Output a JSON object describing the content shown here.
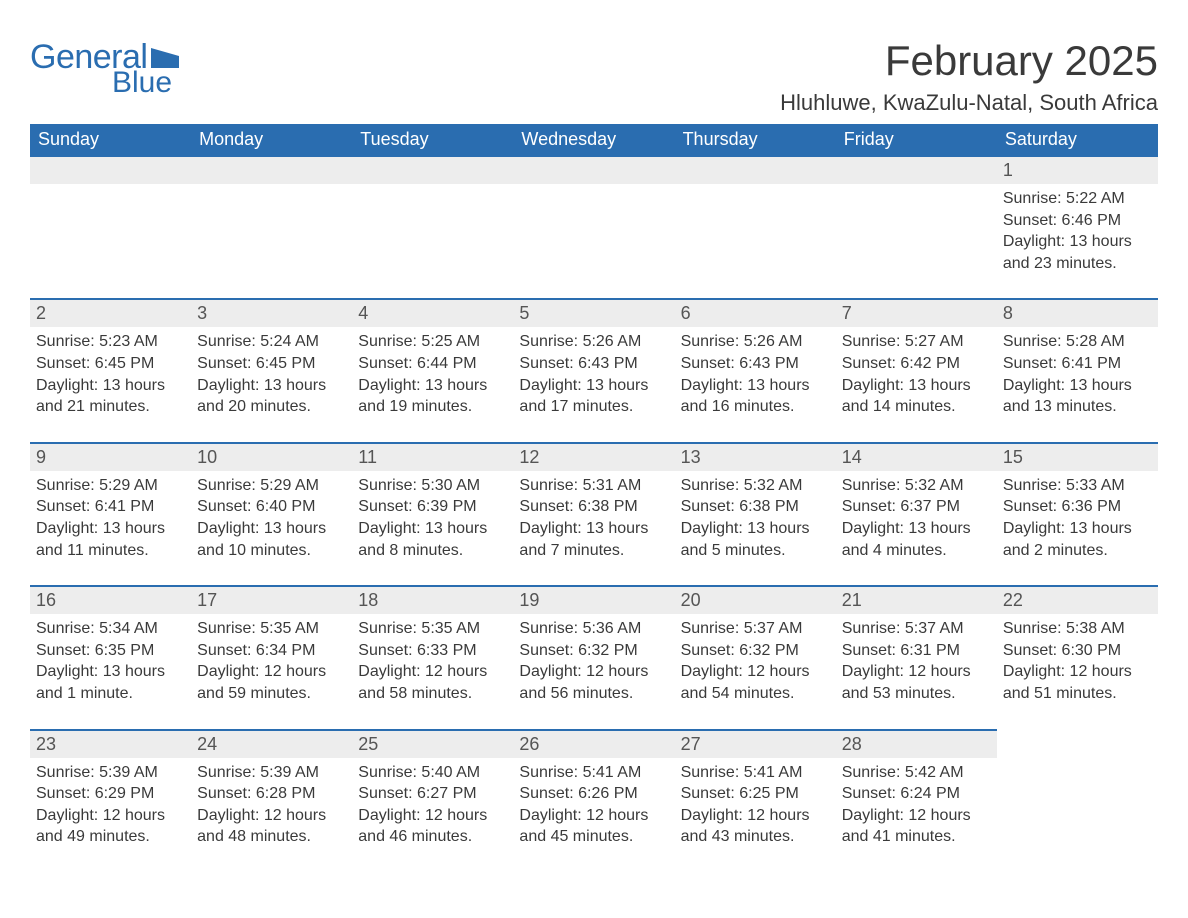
{
  "logo": {
    "text_general": "General",
    "text_blue": "Blue",
    "brand_color": "#2a6db0",
    "flag_color": "#2a6db0"
  },
  "header": {
    "month_title": "February 2025",
    "location": "Hluhluwe, KwaZulu-Natal, South Africa"
  },
  "styling": {
    "header_bg": "#2a6db0",
    "header_fg": "#ffffff",
    "row_top_border": "#2a6db0",
    "daynum_bg": "#ededed",
    "text_color": "#3a3a3a",
    "page_bg": "#ffffff",
    "title_fontsize": 42,
    "location_fontsize": 22,
    "dayhead_fontsize": 18,
    "body_fontsize": 16
  },
  "day_names": [
    "Sunday",
    "Monday",
    "Tuesday",
    "Wednesday",
    "Thursday",
    "Friday",
    "Saturday"
  ],
  "weeks": [
    [
      {
        "empty": true
      },
      {
        "empty": true
      },
      {
        "empty": true
      },
      {
        "empty": true
      },
      {
        "empty": true
      },
      {
        "empty": true
      },
      {
        "day": "1",
        "sunrise": "Sunrise: 5:22 AM",
        "sunset": "Sunset: 6:46 PM",
        "daylight": "Daylight: 13 hours and 23 minutes."
      }
    ],
    [
      {
        "day": "2",
        "sunrise": "Sunrise: 5:23 AM",
        "sunset": "Sunset: 6:45 PM",
        "daylight": "Daylight: 13 hours and 21 minutes."
      },
      {
        "day": "3",
        "sunrise": "Sunrise: 5:24 AM",
        "sunset": "Sunset: 6:45 PM",
        "daylight": "Daylight: 13 hours and 20 minutes."
      },
      {
        "day": "4",
        "sunrise": "Sunrise: 5:25 AM",
        "sunset": "Sunset: 6:44 PM",
        "daylight": "Daylight: 13 hours and 19 minutes."
      },
      {
        "day": "5",
        "sunrise": "Sunrise: 5:26 AM",
        "sunset": "Sunset: 6:43 PM",
        "daylight": "Daylight: 13 hours and 17 minutes."
      },
      {
        "day": "6",
        "sunrise": "Sunrise: 5:26 AM",
        "sunset": "Sunset: 6:43 PM",
        "daylight": "Daylight: 13 hours and 16 minutes."
      },
      {
        "day": "7",
        "sunrise": "Sunrise: 5:27 AM",
        "sunset": "Sunset: 6:42 PM",
        "daylight": "Daylight: 13 hours and 14 minutes."
      },
      {
        "day": "8",
        "sunrise": "Sunrise: 5:28 AM",
        "sunset": "Sunset: 6:41 PM",
        "daylight": "Daylight: 13 hours and 13 minutes."
      }
    ],
    [
      {
        "day": "9",
        "sunrise": "Sunrise: 5:29 AM",
        "sunset": "Sunset: 6:41 PM",
        "daylight": "Daylight: 13 hours and 11 minutes."
      },
      {
        "day": "10",
        "sunrise": "Sunrise: 5:29 AM",
        "sunset": "Sunset: 6:40 PM",
        "daylight": "Daylight: 13 hours and 10 minutes."
      },
      {
        "day": "11",
        "sunrise": "Sunrise: 5:30 AM",
        "sunset": "Sunset: 6:39 PM",
        "daylight": "Daylight: 13 hours and 8 minutes."
      },
      {
        "day": "12",
        "sunrise": "Sunrise: 5:31 AM",
        "sunset": "Sunset: 6:38 PM",
        "daylight": "Daylight: 13 hours and 7 minutes."
      },
      {
        "day": "13",
        "sunrise": "Sunrise: 5:32 AM",
        "sunset": "Sunset: 6:38 PM",
        "daylight": "Daylight: 13 hours and 5 minutes."
      },
      {
        "day": "14",
        "sunrise": "Sunrise: 5:32 AM",
        "sunset": "Sunset: 6:37 PM",
        "daylight": "Daylight: 13 hours and 4 minutes."
      },
      {
        "day": "15",
        "sunrise": "Sunrise: 5:33 AM",
        "sunset": "Sunset: 6:36 PM",
        "daylight": "Daylight: 13 hours and 2 minutes."
      }
    ],
    [
      {
        "day": "16",
        "sunrise": "Sunrise: 5:34 AM",
        "sunset": "Sunset: 6:35 PM",
        "daylight": "Daylight: 13 hours and 1 minute."
      },
      {
        "day": "17",
        "sunrise": "Sunrise: 5:35 AM",
        "sunset": "Sunset: 6:34 PM",
        "daylight": "Daylight: 12 hours and 59 minutes."
      },
      {
        "day": "18",
        "sunrise": "Sunrise: 5:35 AM",
        "sunset": "Sunset: 6:33 PM",
        "daylight": "Daylight: 12 hours and 58 minutes."
      },
      {
        "day": "19",
        "sunrise": "Sunrise: 5:36 AM",
        "sunset": "Sunset: 6:32 PM",
        "daylight": "Daylight: 12 hours and 56 minutes."
      },
      {
        "day": "20",
        "sunrise": "Sunrise: 5:37 AM",
        "sunset": "Sunset: 6:32 PM",
        "daylight": "Daylight: 12 hours and 54 minutes."
      },
      {
        "day": "21",
        "sunrise": "Sunrise: 5:37 AM",
        "sunset": "Sunset: 6:31 PM",
        "daylight": "Daylight: 12 hours and 53 minutes."
      },
      {
        "day": "22",
        "sunrise": "Sunrise: 5:38 AM",
        "sunset": "Sunset: 6:30 PM",
        "daylight": "Daylight: 12 hours and 51 minutes."
      }
    ],
    [
      {
        "day": "23",
        "sunrise": "Sunrise: 5:39 AM",
        "sunset": "Sunset: 6:29 PM",
        "daylight": "Daylight: 12 hours and 49 minutes."
      },
      {
        "day": "24",
        "sunrise": "Sunrise: 5:39 AM",
        "sunset": "Sunset: 6:28 PM",
        "daylight": "Daylight: 12 hours and 48 minutes."
      },
      {
        "day": "25",
        "sunrise": "Sunrise: 5:40 AM",
        "sunset": "Sunset: 6:27 PM",
        "daylight": "Daylight: 12 hours and 46 minutes."
      },
      {
        "day": "26",
        "sunrise": "Sunrise: 5:41 AM",
        "sunset": "Sunset: 6:26 PM",
        "daylight": "Daylight: 12 hours and 45 minutes."
      },
      {
        "day": "27",
        "sunrise": "Sunrise: 5:41 AM",
        "sunset": "Sunset: 6:25 PM",
        "daylight": "Daylight: 12 hours and 43 minutes."
      },
      {
        "day": "28",
        "sunrise": "Sunrise: 5:42 AM",
        "sunset": "Sunset: 6:24 PM",
        "daylight": "Daylight: 12 hours and 41 minutes."
      },
      {
        "empty": true,
        "noborder": true
      }
    ]
  ]
}
